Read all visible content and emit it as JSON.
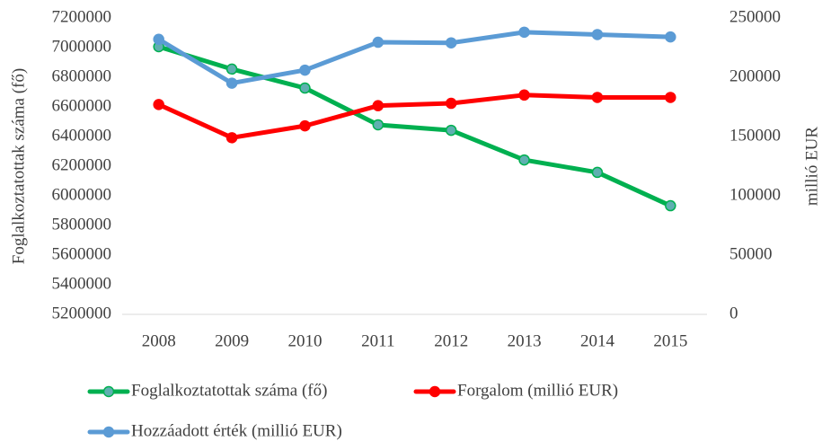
{
  "chart_data": {
    "type": "line",
    "ylabel": "Foglalkoztatottak száma (fő)",
    "y2label": "millió EUR",
    "categories": [
      "2008",
      "2009",
      "2010",
      "2011",
      "2012",
      "2013",
      "2014",
      "2015"
    ],
    "series": [
      {
        "name": "Foglalkoztatottak száma (fő)",
        "color": "#00b050",
        "marker_color": "#5fb0b0",
        "axis": "y",
        "values": [
          7006000,
          6855000,
          6727000,
          6479000,
          6442000,
          6242000,
          6158000,
          5933000
        ]
      },
      {
        "name": "Forgalom (millió EUR)",
        "color": "#ff0000",
        "marker_color": "#ff0000",
        "axis": "y2",
        "values": [
          177000,
          149000,
          159000,
          176000,
          178000,
          185000,
          183000,
          183000
        ]
      },
      {
        "name": "Hozzáadott érték (millió EUR)",
        "color": "#5b9bd5",
        "marker_color": "#5b9bd5",
        "axis": "y2",
        "values": [
          232000,
          195000,
          206000,
          229500,
          229000,
          238000,
          236000,
          234000
        ]
      }
    ],
    "ylim": [
      5200000,
      7200000
    ],
    "yticks": [
      5200000,
      5400000,
      5600000,
      5800000,
      6000000,
      6200000,
      6400000,
      6600000,
      6800000,
      7000000,
      7200000
    ],
    "y2lim": [
      0,
      250000
    ],
    "y2ticks": [
      0,
      50000,
      100000,
      150000,
      200000,
      250000
    ],
    "grid": false,
    "legend": "bottom"
  }
}
